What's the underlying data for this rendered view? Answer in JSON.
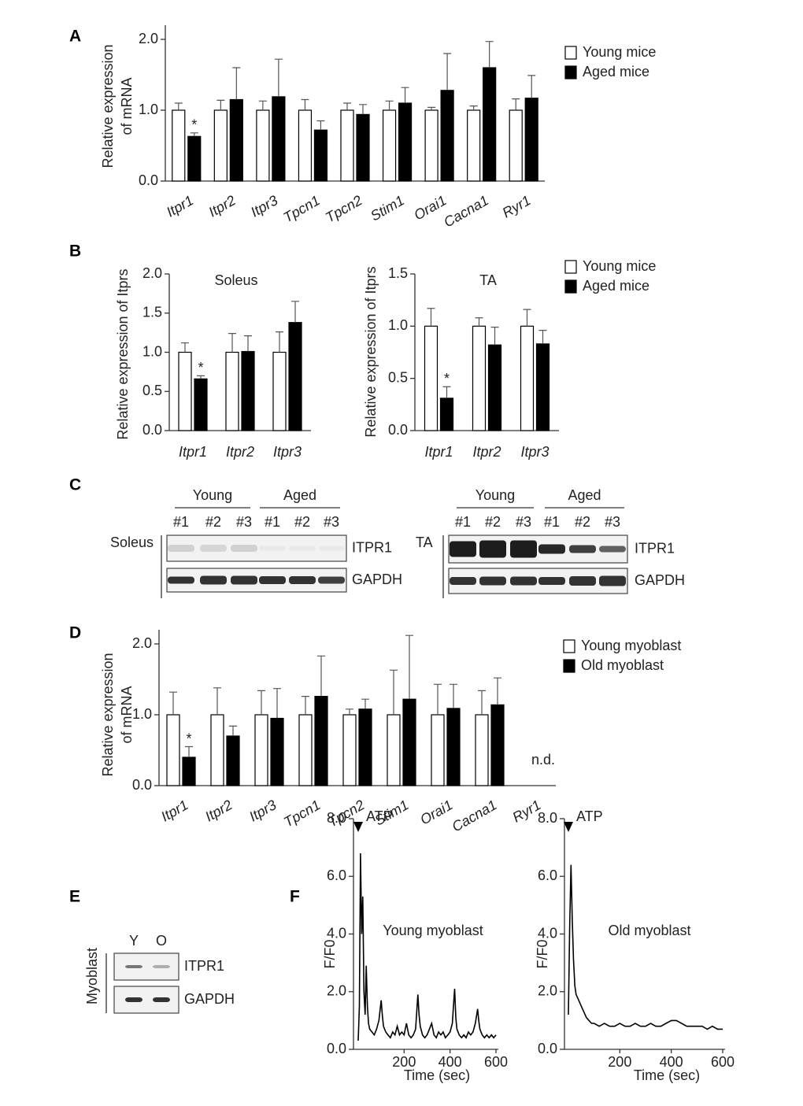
{
  "panel_labels": [
    "A",
    "B",
    "C",
    "D",
    "E",
    "F"
  ],
  "chart_data": [
    {
      "type": "bar",
      "ylabel": [
        "Relative expression",
        "of mRNA"
      ],
      "categories": [
        "Itpr1",
        "Itpr2",
        "Itpr3",
        "Tpcn1",
        "Tpcn2",
        "Stim1",
        "Orai1",
        "Cacna1",
        "Ryr1"
      ],
      "series": [
        {
          "name": "Young mice",
          "color": "#ffffff",
          "values": [
            1.0,
            1.0,
            1.0,
            1.0,
            1.0,
            1.0,
            1.0,
            1.0,
            1.0
          ],
          "errors": [
            0.1,
            0.14,
            0.13,
            0.15,
            0.1,
            0.13,
            0.04,
            0.06,
            0.16
          ]
        },
        {
          "name": "Aged mice",
          "color": "#000000",
          "values": [
            0.63,
            1.15,
            1.19,
            0.72,
            0.94,
            1.1,
            1.28,
            1.6,
            1.17
          ],
          "errors": [
            0.05,
            0.45,
            0.53,
            0.13,
            0.14,
            0.22,
            0.52,
            0.37,
            0.32
          ],
          "annotations": [
            "*",
            null,
            null,
            null,
            null,
            null,
            null,
            null,
            null
          ]
        }
      ],
      "ylim": [
        0,
        2.2
      ],
      "yticks": [
        {
          "value": 0,
          "label": "0.0"
        },
        {
          "value": 1,
          "label": "1.0"
        },
        {
          "value": 2,
          "label": "2.0"
        }
      ],
      "legend": true,
      "rotate_labels": true
    },
    {
      "type": "bar",
      "title": "Soleus",
      "ylabel": [
        "Relative expression of Itprs"
      ],
      "categories": [
        "Itpr1",
        "Itpr2",
        "Itpr3"
      ],
      "series": [
        {
          "color": "#ffffff",
          "values": [
            1.0,
            1.0,
            1.0
          ],
          "errors": [
            0.12,
            0.24,
            0.26
          ]
        },
        {
          "color": "#000000",
          "values": [
            0.66,
            1.01,
            1.38
          ],
          "errors": [
            0.04,
            0.2,
            0.27
          ],
          "annotations": [
            "*",
            null,
            null
          ]
        }
      ],
      "ylim": [
        0,
        2.0
      ],
      "yticks": [
        {
          "value": 0,
          "label": "0.0"
        },
        {
          "value": 0.5,
          "label": "0.5"
        },
        {
          "value": 1,
          "label": "1.0"
        },
        {
          "value": 1.5,
          "label": "1.5"
        },
        {
          "value": 2,
          "label": "2.0"
        }
      ],
      "legend": false,
      "rotate_labels": false
    },
    {
      "type": "bar",
      "title": "TA",
      "ylabel": [
        "Relative expression of Itprs"
      ],
      "categories": [
        "Itpr1",
        "Itpr2",
        "Itpr3"
      ],
      "series": [
        {
          "name": "Young mice",
          "color": "#ffffff",
          "values": [
            1.0,
            1.0,
            1.0
          ],
          "errors": [
            0.17,
            0.08,
            0.16
          ]
        },
        {
          "name": "Aged mice",
          "color": "#000000",
          "values": [
            0.31,
            0.82,
            0.83
          ],
          "errors": [
            0.11,
            0.17,
            0.13
          ],
          "annotations": [
            "*",
            null,
            null
          ]
        }
      ],
      "ylim": [
        0,
        1.5
      ],
      "yticks": [
        {
          "value": 0,
          "label": "0.0"
        },
        {
          "value": 0.5,
          "label": "0.5"
        },
        {
          "value": 1,
          "label": "1.0"
        },
        {
          "value": 1.5,
          "label": "1.5"
        }
      ],
      "legend": true,
      "rotate_labels": false
    },
    {
      "type": "bar",
      "ylabel": [
        "Relative expression",
        "of mRNA"
      ],
      "categories": [
        "Itpr1",
        "Itpr2",
        "Itpr3",
        "Tpcn1",
        "Tpcn2",
        "Stim1",
        "Orai1",
        "Cacna1",
        "Ryr1"
      ],
      "series": [
        {
          "name": "Young myoblast",
          "color": "#ffffff",
          "values": [
            1.0,
            1.0,
            1.0,
            1.0,
            1.0,
            1.0,
            1.0,
            1.0,
            null
          ],
          "errors": [
            0.32,
            0.38,
            0.34,
            0.26,
            0.08,
            0.63,
            0.43,
            0.34,
            null
          ]
        },
        {
          "name": "Old myoblast",
          "color": "#000000",
          "values": [
            0.4,
            0.7,
            0.95,
            1.26,
            1.08,
            1.22,
            1.09,
            1.14,
            null
          ],
          "errors": [
            0.15,
            0.14,
            0.42,
            0.57,
            0.14,
            0.9,
            0.34,
            0.38,
            null
          ],
          "annotations": [
            "*",
            null,
            null,
            null,
            null,
            null,
            null,
            null,
            "n.d."
          ]
        }
      ],
      "ylim": [
        0,
        2.2
      ],
      "yticks": [
        {
          "value": 0,
          "label": "0.0"
        },
        {
          "value": 1,
          "label": "1.0"
        },
        {
          "value": 2,
          "label": "2.0"
        }
      ],
      "legend": true,
      "rotate_labels": true
    },
    {
      "type": "line",
      "subtitle": "Young myoblast",
      "annotation": "ATP",
      "ylabel": [
        "F/F0"
      ],
      "xlabel": "Time (sec)",
      "x": [
        0,
        5,
        10,
        15,
        20,
        25,
        30,
        35,
        40,
        45,
        50,
        60,
        70,
        80,
        90,
        100,
        105,
        110,
        120,
        130,
        140,
        150,
        160,
        170,
        180,
        190,
        200,
        210,
        220,
        230,
        240,
        250,
        260,
        265,
        270,
        280,
        290,
        300,
        310,
        320,
        330,
        340,
        350,
        360,
        370,
        380,
        390,
        400,
        410,
        415,
        420,
        425,
        430,
        440,
        450,
        460,
        470,
        480,
        490,
        500,
        510,
        520,
        525,
        530,
        540,
        550,
        560,
        570,
        580,
        590,
        600
      ],
      "series": [
        {
          "color": "#000000",
          "values": [
            0.3,
            1.5,
            6.8,
            4.0,
            5.3,
            2.0,
            1.2,
            2.9,
            1.5,
            0.9,
            0.7,
            0.6,
            0.5,
            0.7,
            1.0,
            1.7,
            1.2,
            0.8,
            0.6,
            0.5,
            0.4,
            0.6,
            0.5,
            0.8,
            0.5,
            0.6,
            0.5,
            0.9,
            0.5,
            0.4,
            0.5,
            0.7,
            1.9,
            1.2,
            0.8,
            0.5,
            0.4,
            0.5,
            0.7,
            0.9,
            0.5,
            0.4,
            0.6,
            0.5,
            0.6,
            0.4,
            0.5,
            0.6,
            0.9,
            1.5,
            2.1,
            1.1,
            0.7,
            0.5,
            0.4,
            0.5,
            0.4,
            0.6,
            0.5,
            0.6,
            0.9,
            1.4,
            1.0,
            0.7,
            0.5,
            0.4,
            0.5,
            0.4,
            0.5,
            0.4,
            0.5
          ]
        }
      ],
      "xlim": [
        0,
        600
      ],
      "xticks": [
        200,
        400,
        600
      ],
      "ylim": [
        0,
        8
      ],
      "yticks": [
        {
          "value": 0,
          "label": "0.0"
        },
        {
          "value": 2,
          "label": "2.0"
        },
        {
          "value": 4,
          "label": "4.0"
        },
        {
          "value": 6,
          "label": "6.0"
        },
        {
          "value": 8,
          "label": "8.0"
        }
      ]
    },
    {
      "type": "line",
      "subtitle": "Old myoblast",
      "annotation": "ATP",
      "ylabel": [
        "F/F0"
      ],
      "xlabel": "Time (sec)",
      "x": [
        0,
        5,
        10,
        15,
        20,
        25,
        30,
        40,
        50,
        60,
        70,
        80,
        90,
        100,
        120,
        140,
        160,
        180,
        200,
        220,
        240,
        260,
        280,
        300,
        320,
        340,
        360,
        380,
        400,
        420,
        440,
        460,
        480,
        500,
        520,
        540,
        560,
        580,
        600
      ],
      "series": [
        {
          "color": "#000000",
          "values": [
            1.2,
            4.2,
            6.4,
            4.5,
            3.1,
            2.2,
            1.9,
            1.7,
            1.5,
            1.3,
            1.1,
            1.0,
            0.9,
            0.9,
            0.8,
            0.9,
            0.8,
            0.8,
            0.9,
            0.8,
            0.8,
            0.9,
            0.8,
            0.8,
            0.9,
            0.8,
            0.8,
            0.9,
            1.0,
            1.0,
            0.9,
            0.8,
            0.8,
            0.8,
            0.8,
            0.7,
            0.8,
            0.7,
            0.7
          ]
        }
      ],
      "xlim": [
        0,
        600
      ],
      "xticks": [
        200,
        400,
        600
      ],
      "ylim": [
        0,
        8
      ],
      "yticks": [
        {
          "value": 0,
          "label": "0.0"
        },
        {
          "value": 2,
          "label": "2.0"
        },
        {
          "value": 4,
          "label": "4.0"
        },
        {
          "value": 6,
          "label": "6.0"
        },
        {
          "value": 8,
          "label": "8.0"
        }
      ]
    }
  ],
  "blots": [
    {
      "tissue": "Soleus",
      "groups": [
        "Young",
        "Aged"
      ],
      "lanes": [
        "#1",
        "#2",
        "#3",
        "#1",
        "#2",
        "#3"
      ],
      "rows": [
        "ITPR1",
        "GAPDH"
      ]
    },
    {
      "tissue": "TA",
      "groups": [
        "Young",
        "Aged"
      ],
      "lanes": [
        "#1",
        "#2",
        "#3",
        "#1",
        "#2",
        "#3"
      ],
      "rows": [
        "ITPR1",
        "GAPDH"
      ]
    },
    {
      "tissue": "Myoblast",
      "lanes": [
        "Y",
        "O"
      ],
      "rows": [
        "ITPR1",
        "GAPDH"
      ]
    }
  ]
}
